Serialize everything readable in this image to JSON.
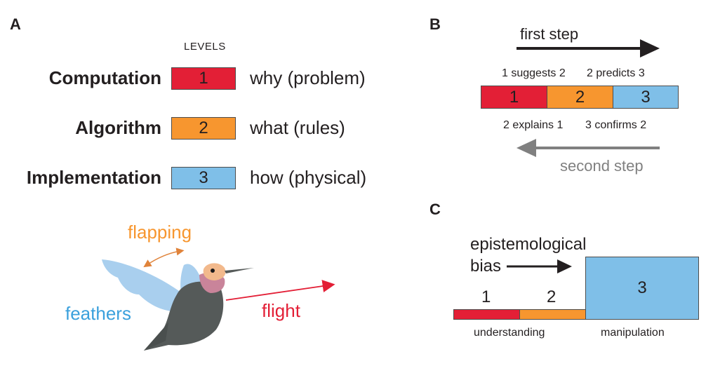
{
  "panels": {
    "a": "A",
    "b": "B",
    "c": "C"
  },
  "colors": {
    "red": "#e31f36",
    "orange": "#f7962f",
    "blue": "#7fbfe8",
    "gray": "#808080"
  },
  "panel_a": {
    "levels_heading": "LEVELS",
    "levels": [
      {
        "name": "Computation",
        "number": "1",
        "description": "why (problem)",
        "color": "#e31f36"
      },
      {
        "name": "Algorithm",
        "number": "2",
        "description": "what (rules)",
        "color": "#f7962f"
      },
      {
        "name": "Implementation",
        "number": "3",
        "description": "how (physical)",
        "color": "#7fbfe8"
      }
    ],
    "bird": {
      "flapping": "flapping",
      "feathers": "feathers",
      "flight": "flight"
    }
  },
  "panel_b": {
    "first_step": "first step",
    "second_step": "second step",
    "top_labels": [
      "1 suggests 2",
      "2 predicts 3"
    ],
    "bottom_labels": [
      "2 explains 1",
      "3 confirms 2"
    ],
    "segments": [
      "1",
      "2",
      "3"
    ]
  },
  "panel_c": {
    "bias_line1": "epistemological",
    "bias_line2": "bias",
    "segments": [
      "1",
      "2",
      "3"
    ],
    "understanding": "understanding",
    "manipulation": "manipulation"
  }
}
